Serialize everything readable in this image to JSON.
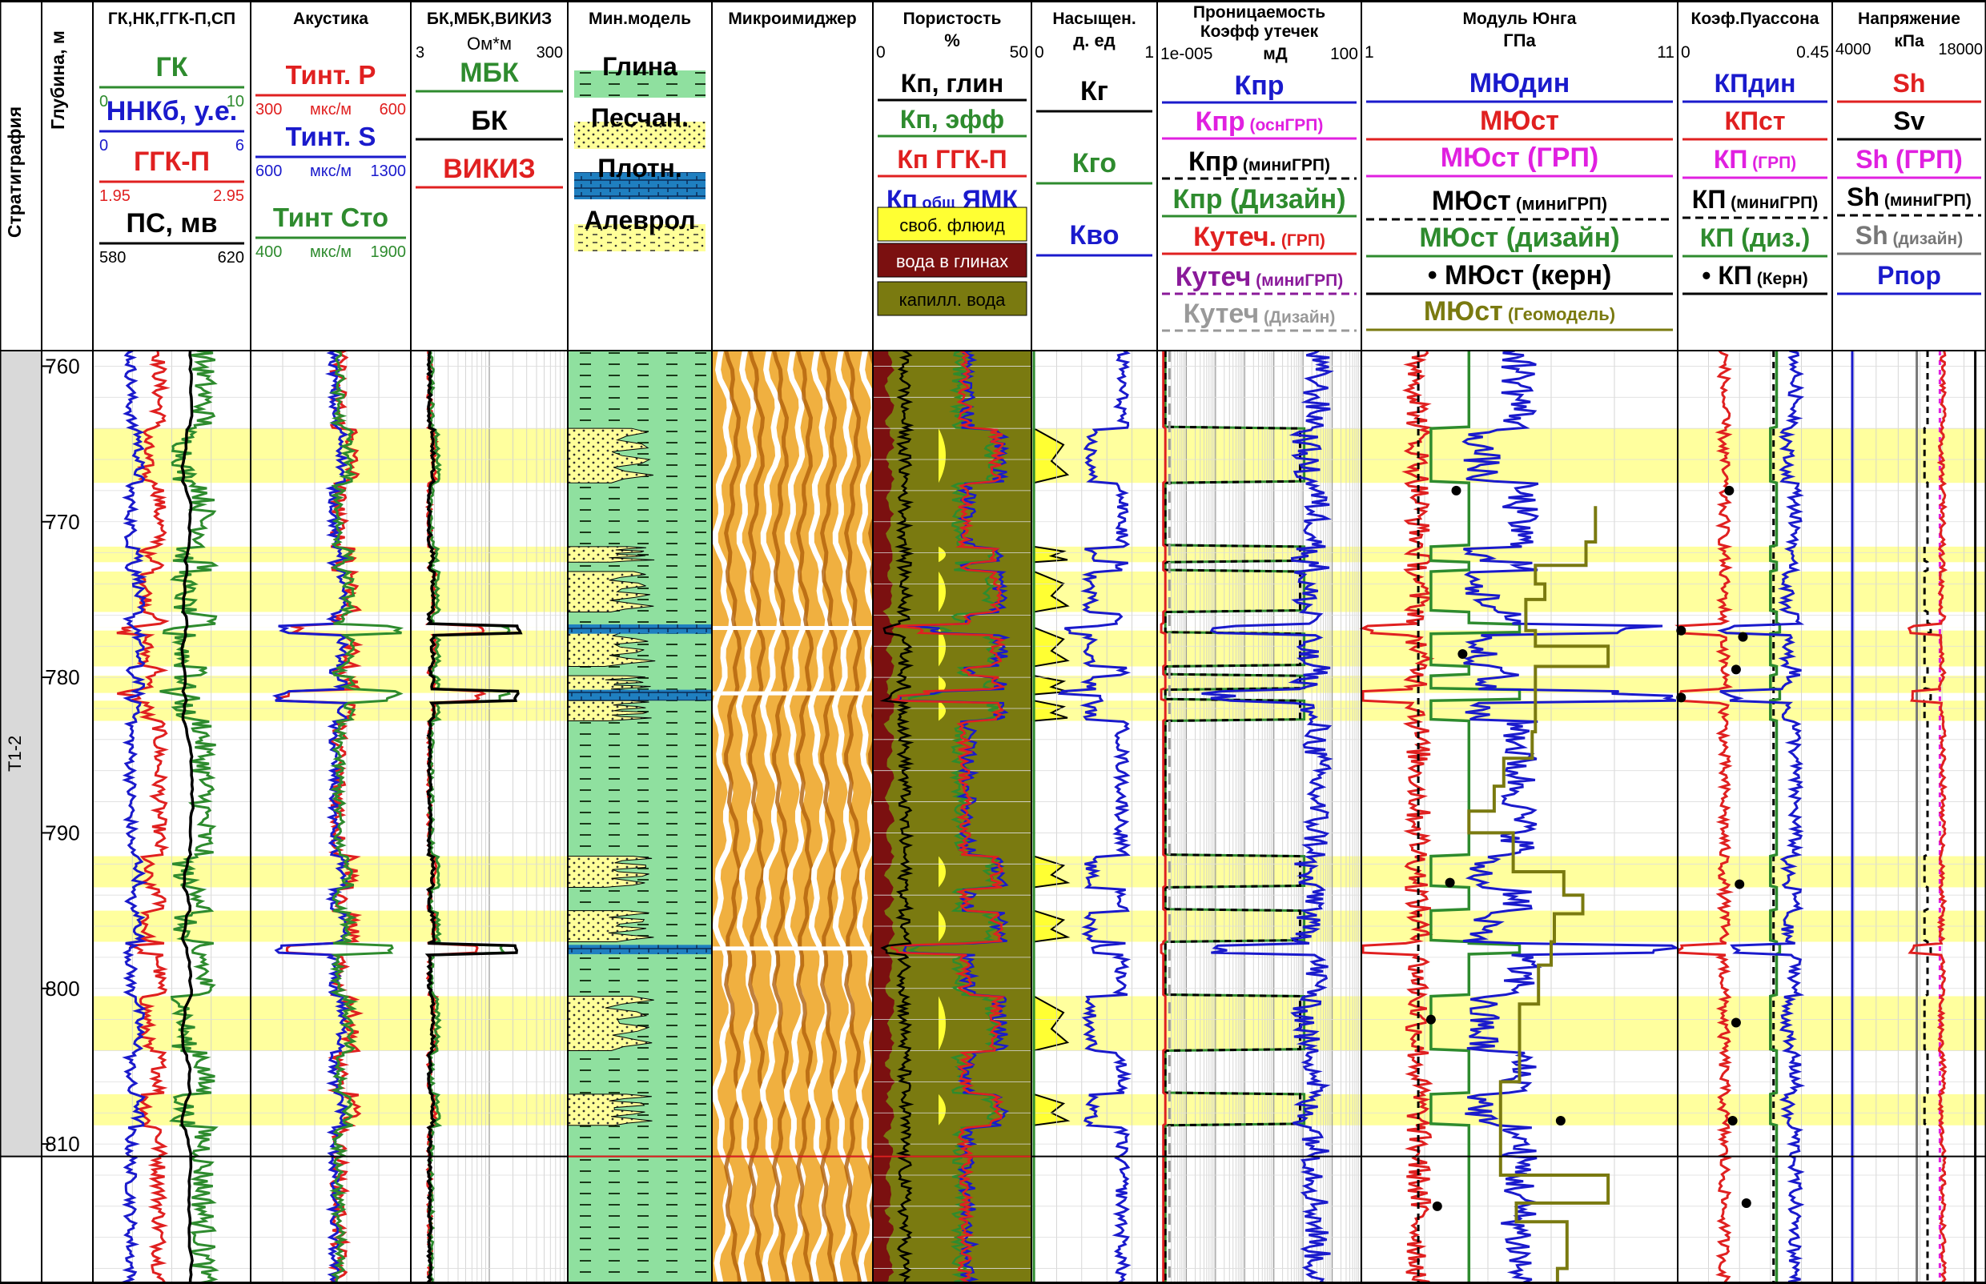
{
  "tracks": [
    {
      "id": "strat",
      "title": "Стратиграфия"
    },
    {
      "id": "depth",
      "title": "Глубина, м"
    },
    {
      "id": "gk",
      "title": "ГК,НК,ГГК-П,СП",
      "header": [
        {
          "name": "ГК",
          "color": "#2e8b2e",
          "min": "0",
          "max": "10"
        },
        {
          "name": "ННКб, у.е.",
          "color": "#1a1acc",
          "min": "0",
          "max": "6"
        },
        {
          "name": "ГГК-П",
          "color": "#e02020",
          "min": "1.95",
          "max": "2.95"
        },
        {
          "name": "ПС, мв",
          "color": "#000000",
          "min": "580",
          "max": "620"
        }
      ]
    },
    {
      "id": "ak",
      "title": "Акустика",
      "header": [
        {
          "name": "Тинт. Р",
          "unit": "мкс/м",
          "color": "#e02020",
          "min": "300",
          "max": "600"
        },
        {
          "name": "Тинт. S",
          "unit": "мкс/м",
          "color": "#1a1acc",
          "min": "600",
          "max": "1300"
        },
        {
          "name": "Тинт Сто",
          "unit": "мкс/м",
          "color": "#2e8b2e",
          "min": "400",
          "max": "1900"
        }
      ]
    },
    {
      "id": "bk",
      "title": "БК,МБК,ВИКИЗ",
      "unit": "Ом*м",
      "min": "3",
      "max": "300",
      "header": [
        {
          "name": "МБК",
          "color": "#2e8b2e"
        },
        {
          "name": "БК",
          "color": "#000000"
        },
        {
          "name": "ВИКИЗ",
          "color": "#e02020"
        }
      ]
    },
    {
      "id": "mm",
      "title": "Мин.модель",
      "legend": [
        "Глина",
        "Песчан.",
        "Плотн.",
        "Алеврол"
      ]
    },
    {
      "id": "mi",
      "title": "Микроимиджер"
    },
    {
      "id": "por",
      "title": "Пористость",
      "unit": "%",
      "min": "0",
      "max": "50",
      "header": [
        {
          "name": "Кп, глин",
          "color": "#000000"
        },
        {
          "name": "Кп, эфф",
          "color": "#2e8b2e"
        },
        {
          "name": "Кп ГГК-П",
          "color": "#e02020"
        },
        {
          "name": "Кп",
          "sub": "общ",
          "tail": "ЯМК",
          "color": "#1a1acc"
        }
      ],
      "fills": [
        "своб. флюид",
        "вода в глинах",
        "капилл. вода"
      ]
    },
    {
      "id": "sat",
      "title": "Насыщен.",
      "unit": "д. ед",
      "min": "0",
      "max": "1",
      "header": [
        {
          "name": "Кг",
          "color": "#000000"
        },
        {
          "name": "Кго",
          "color": "#2e8b2e"
        },
        {
          "name": "Кво",
          "color": "#1a1acc"
        }
      ]
    },
    {
      "id": "perm",
      "title": "Проницаемость",
      "title2": "Коэфф утечек",
      "unit": "мД",
      "min": "1e-005",
      "max": "100",
      "header": [
        {
          "name": "Кпр",
          "sub": "",
          "color": "#1a1acc"
        },
        {
          "name": "Кпр",
          "sub": "(оснГРП)",
          "color": "#e020e0"
        },
        {
          "name": "Кпр",
          "sub": "(миниГРП)",
          "color": "#000000",
          "dash": true
        },
        {
          "name": "Кпр (Дизайн)",
          "sub": "",
          "color": "#2e8b2e"
        },
        {
          "name": "Кутеч.",
          "sub": "(ГРП)",
          "color": "#e02020"
        },
        {
          "name": "Кутеч",
          "sub": "(миниГРП)",
          "color": "#8a1a9a",
          "dash": true
        },
        {
          "name": "Кутеч",
          "sub": "(Дизайн)",
          "color": "#999999",
          "dash": true
        }
      ]
    },
    {
      "id": "yng",
      "title": "Модуль Юнга",
      "unit": "ГПа",
      "min": "1",
      "max": "11",
      "header": [
        {
          "name": "МЮдин",
          "sub": "",
          "color": "#1a1acc"
        },
        {
          "name": "МЮст",
          "sub": "",
          "color": "#e02020"
        },
        {
          "name": "МЮст (ГРП)",
          "sub": "",
          "color": "#e020e0"
        },
        {
          "name": "МЮст",
          "sub": "(миниГРП)",
          "color": "#000000",
          "dash": true
        },
        {
          "name": "МЮст (дизайн)",
          "sub": "",
          "color": "#2e8b2e"
        },
        {
          "name": "• МЮст (керн)",
          "sub": "",
          "color": "#000000"
        },
        {
          "name": "МЮст",
          "sub": "(Геомодель)",
          "color": "#7a7a10"
        }
      ]
    },
    {
      "id": "pua",
      "title": "Коэф.Пуассона",
      "min": "0",
      "max": "0.45",
      "header": [
        {
          "name": "КПдин",
          "sub": "",
          "color": "#1a1acc"
        },
        {
          "name": "КПст",
          "sub": "",
          "color": "#e02020"
        },
        {
          "name": "КП",
          "sub": "(ГРП)",
          "color": "#e020e0"
        },
        {
          "name": "КП",
          "sub": "(миниГРП)",
          "color": "#000000",
          "dash": true
        },
        {
          "name": "КП (диз.)",
          "sub": "",
          "color": "#2e8b2e"
        },
        {
          "name": "• КП",
          "sub": "(Керн)",
          "color": "#000000"
        }
      ]
    },
    {
      "id": "str",
      "title": "Напряжение",
      "unit": "кПа",
      "min": "4000",
      "max": "18000",
      "header": [
        {
          "name": "Sh",
          "sub": "",
          "color": "#e02020"
        },
        {
          "name": "Sv",
          "sub": "",
          "color": "#000000"
        },
        {
          "name": "Sh (ГРП)",
          "sub": "",
          "color": "#e020e0"
        },
        {
          "name": "Sh",
          "sub": "(миниГРП)",
          "color": "#000000",
          "dash": true
        },
        {
          "name": "Sh",
          "sub": "(дизайн)",
          "color": "#777777"
        },
        {
          "name": "Рпор",
          "sub": "",
          "color": "#1a1acc"
        }
      ]
    }
  ],
  "strat_unit": "Т1-2",
  "depth_ticks": [
    "760",
    "770",
    "780",
    "790",
    "800",
    "810"
  ],
  "chart_data": {
    "type": "well-log",
    "depth_range_m": [
      759,
      819
    ],
    "depth_unit": "м",
    "yellow_intervals": [
      [
        764,
        767.5
      ],
      [
        771.6,
        772.6
      ],
      [
        773.2,
        775.8
      ],
      [
        776.8,
        779.3
      ],
      [
        779.9,
        781.1
      ],
      [
        781.5,
        782.8
      ],
      [
        791.5,
        793.5
      ],
      [
        795,
        797
      ],
      [
        800.5,
        804
      ],
      [
        806.8,
        808.8
      ]
    ],
    "dense_layers": [
      [
        776.6,
        777.2
      ],
      [
        780.8,
        781.5
      ],
      [
        797.2,
        797.8
      ]
    ],
    "boundary_depth": 810.8,
    "youngs_core_points": [
      [
        768,
        4
      ],
      [
        778.5,
        4.2
      ],
      [
        793.2,
        3.8
      ],
      [
        802,
        3.2
      ],
      [
        808.5,
        7.3
      ],
      [
        814,
        3.4
      ]
    ],
    "poisson_core_points": [
      [
        768,
        0.15
      ],
      [
        777,
        0.01
      ],
      [
        777.4,
        0.19
      ],
      [
        779.5,
        0.17
      ],
      [
        781.3,
        0.01
      ],
      [
        793.3,
        0.18
      ],
      [
        802.2,
        0.17
      ],
      [
        808.5,
        0.16
      ],
      [
        813.8,
        0.2
      ]
    ],
    "geomodel_youngs": [
      [
        769,
        8.4
      ],
      [
        771.3,
        8.1
      ],
      [
        772.8,
        6.5
      ],
      [
        774,
        6.8
      ],
      [
        775,
        6.2
      ],
      [
        777,
        6.5
      ],
      [
        778,
        8.8
      ],
      [
        779.3,
        6.5
      ],
      [
        783.5,
        6.4
      ],
      [
        785.2,
        5.5
      ],
      [
        787,
        5.2
      ],
      [
        788.6,
        4.4
      ],
      [
        790,
        5.8
      ],
      [
        792.5,
        7.4
      ],
      [
        794,
        8
      ],
      [
        795.2,
        7.1
      ],
      [
        797,
        7
      ],
      [
        798.5,
        6.6
      ],
      [
        801,
        6
      ],
      [
        806,
        5.4
      ],
      [
        812,
        8.8
      ],
      [
        813.8,
        5.9
      ],
      [
        815,
        7.5
      ],
      [
        818,
        7.2
      ]
    ]
  }
}
